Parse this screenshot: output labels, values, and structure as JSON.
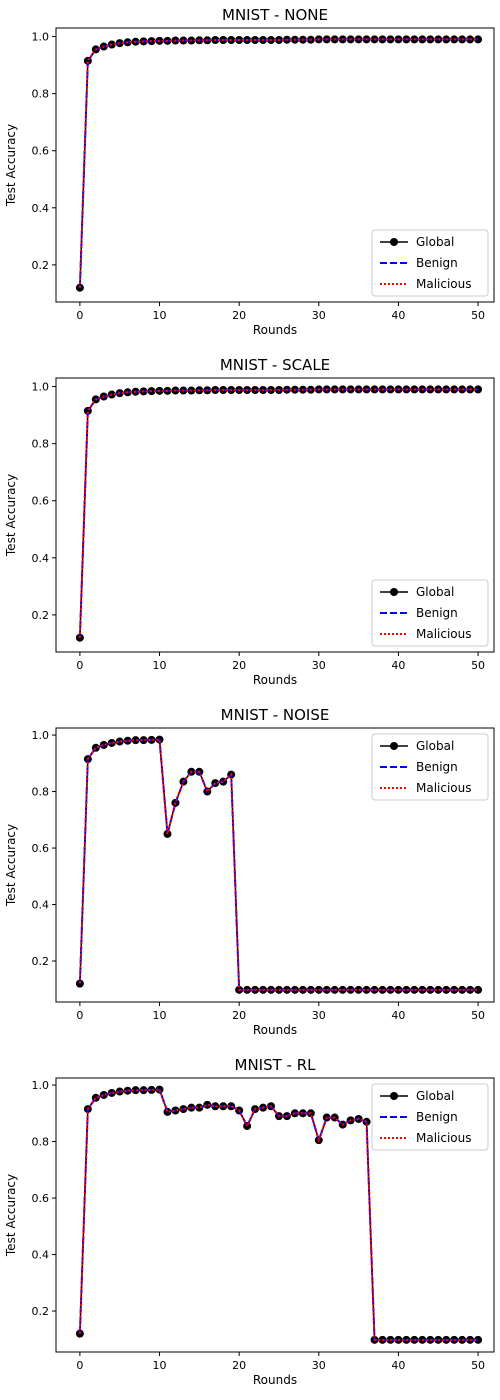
{
  "chart_data": [
    {
      "type": "line",
      "title": "MNIST - NONE",
      "xlabel": "Rounds",
      "ylabel": "Test Accuracy",
      "xlim": [
        -3,
        52
      ],
      "ylim": [
        0.07,
        1.03
      ],
      "xticks": [
        "0",
        "10",
        "20",
        "30",
        "40",
        "50"
      ],
      "yticks": [
        "0.2",
        "0.4",
        "0.6",
        "0.8",
        "1.0"
      ],
      "legend_position": "lower-right",
      "x": [
        0,
        1,
        2,
        3,
        4,
        5,
        6,
        7,
        8,
        9,
        10,
        11,
        12,
        13,
        14,
        15,
        16,
        17,
        18,
        19,
        20,
        21,
        22,
        23,
        24,
        25,
        26,
        27,
        28,
        29,
        30,
        31,
        32,
        33,
        34,
        35,
        36,
        37,
        38,
        39,
        40,
        41,
        42,
        43,
        44,
        45,
        46,
        47,
        48,
        49,
        50
      ],
      "series": [
        {
          "name": "Global",
          "color": "#000000",
          "style": "solid-marker",
          "values": [
            0.12,
            0.915,
            0.955,
            0.965,
            0.972,
            0.977,
            0.98,
            0.982,
            0.983,
            0.984,
            0.985,
            0.985,
            0.986,
            0.986,
            0.986,
            0.987,
            0.987,
            0.988,
            0.988,
            0.988,
            0.988,
            0.988,
            0.988,
            0.988,
            0.988,
            0.988,
            0.989,
            0.989,
            0.989,
            0.989,
            0.99,
            0.99,
            0.99,
            0.99,
            0.99,
            0.99,
            0.99,
            0.99,
            0.99,
            0.99,
            0.99,
            0.99,
            0.99,
            0.99,
            0.99,
            0.99,
            0.99,
            0.99,
            0.99,
            0.99,
            0.99
          ]
        },
        {
          "name": "Benign",
          "color": "#0000ff",
          "style": "dashed",
          "values": [
            0.12,
            0.915,
            0.955,
            0.965,
            0.972,
            0.977,
            0.98,
            0.982,
            0.983,
            0.984,
            0.985,
            0.985,
            0.986,
            0.986,
            0.986,
            0.987,
            0.987,
            0.988,
            0.988,
            0.988,
            0.988,
            0.988,
            0.988,
            0.988,
            0.988,
            0.988,
            0.989,
            0.989,
            0.989,
            0.989,
            0.99,
            0.99,
            0.99,
            0.99,
            0.99,
            0.99,
            0.99,
            0.99,
            0.99,
            0.99,
            0.99,
            0.99,
            0.99,
            0.99,
            0.99,
            0.99,
            0.99,
            0.99,
            0.99,
            0.99,
            0.99
          ]
        },
        {
          "name": "Malicious",
          "color": "#ff0000",
          "style": "dotted",
          "values": [
            0.12,
            0.915,
            0.955,
            0.965,
            0.972,
            0.977,
            0.98,
            0.982,
            0.983,
            0.984,
            0.985,
            0.985,
            0.986,
            0.986,
            0.986,
            0.987,
            0.987,
            0.988,
            0.988,
            0.988,
            0.988,
            0.988,
            0.988,
            0.988,
            0.988,
            0.988,
            0.989,
            0.989,
            0.989,
            0.989,
            0.99,
            0.99,
            0.99,
            0.99,
            0.99,
            0.99,
            0.99,
            0.99,
            0.99,
            0.99,
            0.99,
            0.99,
            0.99,
            0.99,
            0.99,
            0.99,
            0.99,
            0.99,
            0.99,
            0.99,
            0.99
          ]
        }
      ]
    },
    {
      "type": "line",
      "title": "MNIST - SCALE",
      "xlabel": "Rounds",
      "ylabel": "Test Accuracy",
      "xlim": [
        -3,
        52
      ],
      "ylim": [
        0.07,
        1.03
      ],
      "xticks": [
        "0",
        "10",
        "20",
        "30",
        "40",
        "50"
      ],
      "yticks": [
        "0.2",
        "0.4",
        "0.6",
        "0.8",
        "1.0"
      ],
      "legend_position": "lower-right",
      "x": [
        0,
        1,
        2,
        3,
        4,
        5,
        6,
        7,
        8,
        9,
        10,
        11,
        12,
        13,
        14,
        15,
        16,
        17,
        18,
        19,
        20,
        21,
        22,
        23,
        24,
        25,
        26,
        27,
        28,
        29,
        30,
        31,
        32,
        33,
        34,
        35,
        36,
        37,
        38,
        39,
        40,
        41,
        42,
        43,
        44,
        45,
        46,
        47,
        48,
        49,
        50
      ],
      "series": [
        {
          "name": "Global",
          "color": "#000000",
          "style": "solid-marker",
          "values": [
            0.12,
            0.915,
            0.955,
            0.965,
            0.972,
            0.977,
            0.98,
            0.982,
            0.983,
            0.984,
            0.985,
            0.985,
            0.986,
            0.986,
            0.986,
            0.987,
            0.987,
            0.988,
            0.988,
            0.988,
            0.988,
            0.988,
            0.988,
            0.988,
            0.988,
            0.988,
            0.989,
            0.989,
            0.989,
            0.989,
            0.99,
            0.99,
            0.99,
            0.99,
            0.99,
            0.99,
            0.99,
            0.99,
            0.99,
            0.99,
            0.99,
            0.99,
            0.99,
            0.99,
            0.99,
            0.99,
            0.99,
            0.99,
            0.99,
            0.99,
            0.99
          ]
        },
        {
          "name": "Benign",
          "color": "#0000ff",
          "style": "dashed",
          "values": [
            0.12,
            0.915,
            0.955,
            0.965,
            0.972,
            0.977,
            0.98,
            0.982,
            0.983,
            0.984,
            0.985,
            0.985,
            0.986,
            0.986,
            0.986,
            0.987,
            0.987,
            0.988,
            0.988,
            0.988,
            0.988,
            0.988,
            0.988,
            0.988,
            0.988,
            0.988,
            0.989,
            0.989,
            0.989,
            0.989,
            0.99,
            0.99,
            0.99,
            0.99,
            0.99,
            0.99,
            0.99,
            0.99,
            0.99,
            0.99,
            0.99,
            0.99,
            0.99,
            0.99,
            0.99,
            0.99,
            0.99,
            0.99,
            0.99,
            0.99,
            0.99
          ]
        },
        {
          "name": "Malicious",
          "color": "#ff0000",
          "style": "dotted",
          "values": [
            0.12,
            0.915,
            0.955,
            0.965,
            0.972,
            0.977,
            0.98,
            0.982,
            0.983,
            0.984,
            0.985,
            0.985,
            0.986,
            0.986,
            0.986,
            0.987,
            0.987,
            0.988,
            0.988,
            0.988,
            0.988,
            0.988,
            0.988,
            0.988,
            0.988,
            0.988,
            0.989,
            0.989,
            0.989,
            0.989,
            0.99,
            0.99,
            0.99,
            0.99,
            0.99,
            0.99,
            0.99,
            0.99,
            0.99,
            0.99,
            0.99,
            0.99,
            0.99,
            0.99,
            0.99,
            0.99,
            0.99,
            0.99,
            0.99,
            0.99,
            0.99
          ]
        }
      ]
    },
    {
      "type": "line",
      "title": "MNIST - NOISE",
      "xlabel": "Rounds",
      "ylabel": "Test Accuracy",
      "xlim": [
        -3,
        52
      ],
      "ylim": [
        0.055,
        1.025
      ],
      "xticks": [
        "0",
        "10",
        "20",
        "30",
        "40",
        "50"
      ],
      "yticks": [
        "0.2",
        "0.4",
        "0.6",
        "0.8",
        "1.0"
      ],
      "legend_position": "upper-right",
      "x": [
        0,
        1,
        2,
        3,
        4,
        5,
        6,
        7,
        8,
        9,
        10,
        11,
        12,
        13,
        14,
        15,
        16,
        17,
        18,
        19,
        20,
        21,
        22,
        23,
        24,
        25,
        26,
        27,
        28,
        29,
        30,
        31,
        32,
        33,
        34,
        35,
        36,
        37,
        38,
        39,
        40,
        41,
        42,
        43,
        44,
        45,
        46,
        47,
        48,
        49,
        50
      ],
      "series": [
        {
          "name": "Global",
          "color": "#000000",
          "style": "solid-marker",
          "values": [
            0.12,
            0.915,
            0.955,
            0.965,
            0.972,
            0.977,
            0.98,
            0.982,
            0.982,
            0.983,
            0.984,
            0.65,
            0.76,
            0.835,
            0.87,
            0.87,
            0.8,
            0.83,
            0.835,
            0.86,
            0.098,
            0.098,
            0.098,
            0.098,
            0.098,
            0.098,
            0.098,
            0.098,
            0.098,
            0.098,
            0.098,
            0.098,
            0.098,
            0.098,
            0.098,
            0.098,
            0.098,
            0.098,
            0.098,
            0.098,
            0.098,
            0.098,
            0.098,
            0.098,
            0.098,
            0.098,
            0.098,
            0.098,
            0.098,
            0.098,
            0.098
          ]
        },
        {
          "name": "Benign",
          "color": "#0000ff",
          "style": "dashed",
          "values": [
            0.12,
            0.915,
            0.955,
            0.965,
            0.972,
            0.977,
            0.98,
            0.982,
            0.982,
            0.983,
            0.984,
            0.65,
            0.76,
            0.835,
            0.87,
            0.87,
            0.8,
            0.83,
            0.835,
            0.86,
            0.098,
            0.098,
            0.098,
            0.098,
            0.098,
            0.098,
            0.098,
            0.098,
            0.098,
            0.098,
            0.098,
            0.098,
            0.098,
            0.098,
            0.098,
            0.098,
            0.098,
            0.098,
            0.098,
            0.098,
            0.098,
            0.098,
            0.098,
            0.098,
            0.098,
            0.098,
            0.098,
            0.098,
            0.098,
            0.098,
            0.098
          ]
        },
        {
          "name": "Malicious",
          "color": "#ff0000",
          "style": "dotted",
          "values": [
            0.12,
            0.915,
            0.955,
            0.965,
            0.972,
            0.977,
            0.98,
            0.982,
            0.982,
            0.983,
            0.984,
            0.65,
            0.76,
            0.835,
            0.87,
            0.87,
            0.8,
            0.83,
            0.835,
            0.86,
            0.098,
            0.098,
            0.098,
            0.098,
            0.098,
            0.098,
            0.098,
            0.098,
            0.098,
            0.098,
            0.098,
            0.098,
            0.098,
            0.098,
            0.098,
            0.098,
            0.098,
            0.098,
            0.098,
            0.098,
            0.098,
            0.098,
            0.098,
            0.098,
            0.098,
            0.098,
            0.098,
            0.098,
            0.098,
            0.098,
            0.098
          ]
        }
      ]
    },
    {
      "type": "line",
      "title": "MNIST - RL",
      "xlabel": "Rounds",
      "ylabel": "Test Accuracy",
      "xlim": [
        -3,
        52
      ],
      "ylim": [
        0.055,
        1.025
      ],
      "xticks": [
        "0",
        "10",
        "20",
        "30",
        "40",
        "50"
      ],
      "yticks": [
        "0.2",
        "0.4",
        "0.6",
        "0.8",
        "1.0"
      ],
      "legend_position": "upper-right",
      "x": [
        0,
        1,
        2,
        3,
        4,
        5,
        6,
        7,
        8,
        9,
        10,
        11,
        12,
        13,
        14,
        15,
        16,
        17,
        18,
        19,
        20,
        21,
        22,
        23,
        24,
        25,
        26,
        27,
        28,
        29,
        30,
        31,
        32,
        33,
        34,
        35,
        36,
        37,
        38,
        39,
        40,
        41,
        42,
        43,
        44,
        45,
        46,
        47,
        48,
        49,
        50
      ],
      "series": [
        {
          "name": "Global",
          "color": "#000000",
          "style": "solid-marker",
          "values": [
            0.12,
            0.915,
            0.955,
            0.965,
            0.972,
            0.977,
            0.98,
            0.982,
            0.982,
            0.983,
            0.984,
            0.905,
            0.91,
            0.915,
            0.92,
            0.92,
            0.93,
            0.925,
            0.925,
            0.925,
            0.91,
            0.855,
            0.915,
            0.92,
            0.925,
            0.89,
            0.89,
            0.9,
            0.9,
            0.9,
            0.805,
            0.885,
            0.885,
            0.86,
            0.875,
            0.88,
            0.87,
            0.098,
            0.098,
            0.098,
            0.098,
            0.098,
            0.098,
            0.098,
            0.098,
            0.098,
            0.098,
            0.098,
            0.098,
            0.098,
            0.098
          ]
        },
        {
          "name": "Benign",
          "color": "#0000ff",
          "style": "dashed",
          "values": [
            0.12,
            0.915,
            0.955,
            0.965,
            0.972,
            0.977,
            0.98,
            0.982,
            0.982,
            0.983,
            0.984,
            0.905,
            0.91,
            0.915,
            0.92,
            0.92,
            0.93,
            0.925,
            0.925,
            0.925,
            0.91,
            0.855,
            0.915,
            0.92,
            0.925,
            0.89,
            0.89,
            0.9,
            0.9,
            0.9,
            0.805,
            0.885,
            0.885,
            0.86,
            0.875,
            0.88,
            0.87,
            0.098,
            0.098,
            0.098,
            0.098,
            0.098,
            0.098,
            0.098,
            0.098,
            0.098,
            0.098,
            0.098,
            0.098,
            0.098,
            0.098
          ]
        },
        {
          "name": "Malicious",
          "color": "#ff0000",
          "style": "dotted",
          "values": [
            0.12,
            0.915,
            0.955,
            0.965,
            0.972,
            0.977,
            0.98,
            0.982,
            0.982,
            0.983,
            0.984,
            0.905,
            0.91,
            0.915,
            0.92,
            0.92,
            0.93,
            0.925,
            0.925,
            0.925,
            0.91,
            0.855,
            0.915,
            0.92,
            0.925,
            0.89,
            0.89,
            0.9,
            0.9,
            0.9,
            0.805,
            0.885,
            0.885,
            0.86,
            0.875,
            0.88,
            0.87,
            0.098,
            0.098,
            0.098,
            0.098,
            0.098,
            0.098,
            0.098,
            0.098,
            0.098,
            0.098,
            0.098,
            0.098,
            0.098,
            0.098
          ]
        }
      ]
    }
  ]
}
